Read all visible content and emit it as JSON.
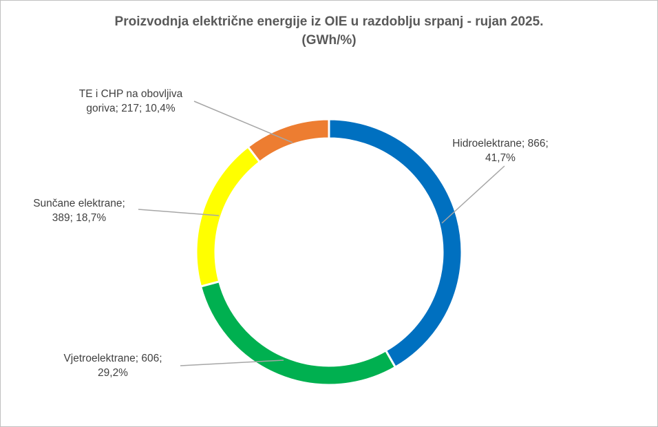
{
  "chart_data": {
    "type": "pie",
    "variant": "doughnut",
    "title_line1": "Proizvodnja električne energije iz OIE u razdoblju srpanj - rujan 2025.",
    "title_line2": "(GWh/%)",
    "slices": [
      {
        "name": "Hidroelektrane",
        "value": 866,
        "percent": "41,7%",
        "color": "#0070C0",
        "label_lines": [
          "Hidroelektrane; 866;",
          "41,7%"
        ]
      },
      {
        "name": "Vjetroelektrane",
        "value": 606,
        "percent": "29,2%",
        "color": "#00B050",
        "label_lines": [
          "Vjetroelektrane; 606;",
          "29,2%"
        ]
      },
      {
        "name": "Sunčane elektrane",
        "value": 389,
        "percent": "18,7%",
        "color": "#FFFF00",
        "label_lines": [
          "Sunčane elektrane;",
          "389; 18,7%"
        ]
      },
      {
        "name": "TE i CHP na obovljiva goriva",
        "value": 217,
        "percent": "10,4%",
        "color": "#ED7D31",
        "label_lines": [
          "TE i CHP na obovljiva",
          "goriva; 217; 10,4%"
        ]
      }
    ],
    "leader_line_color": "#A6A6A6",
    "legend": "none"
  }
}
